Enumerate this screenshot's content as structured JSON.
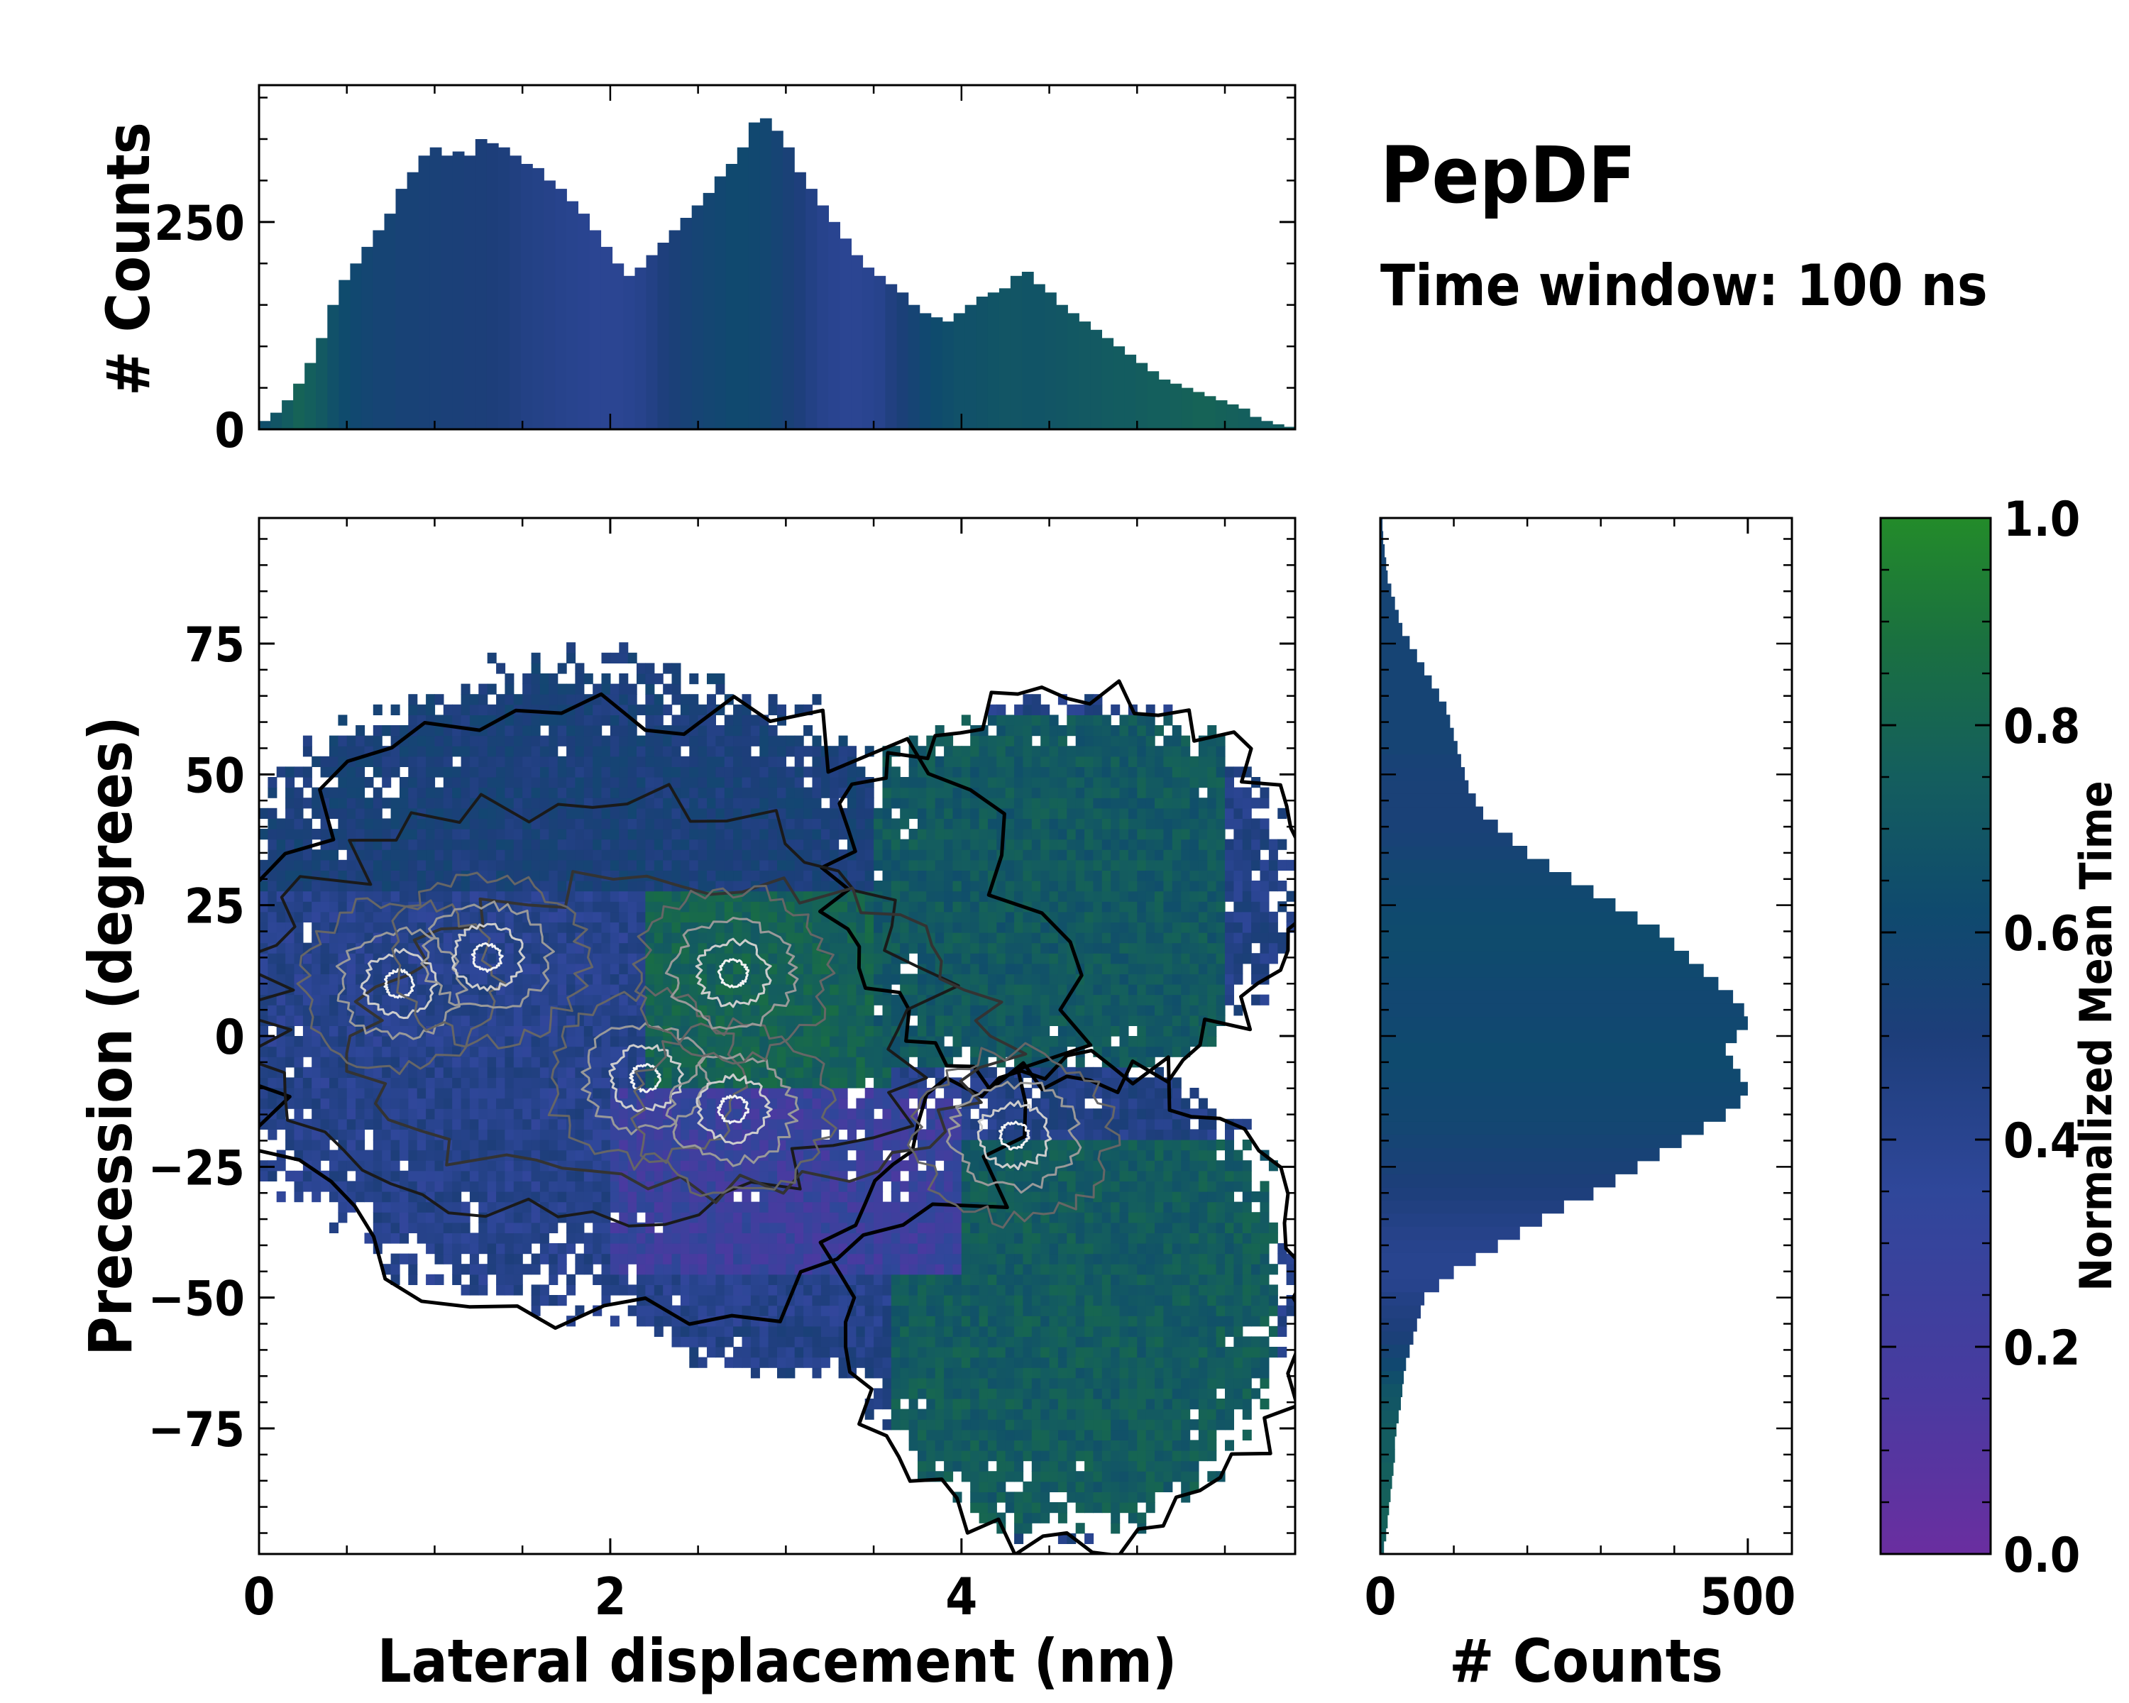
{
  "annotation": {
    "title": "PepDF",
    "subtitle": "Time window: 100 ns"
  },
  "chart_data": [
    {
      "type": "heatmap",
      "role": "main-2d-histogram",
      "xlabel": "Lateral displacement (nm)",
      "ylabel": "Precession (degrees)",
      "xlim": [
        0,
        5.9
      ],
      "ylim": [
        -99,
        99
      ],
      "xticks": [
        0,
        2,
        4
      ],
      "xtick_labels": [
        "0",
        "2",
        "4"
      ],
      "yticks": [
        -75,
        -50,
        -25,
        0,
        25,
        50,
        75
      ],
      "ytick_labels": [
        "−75",
        "−50",
        "−25",
        "0",
        "25",
        "50",
        "75"
      ],
      "description_regions": [
        {
          "x_range": [
            0,
            4.2
          ],
          "y_range": [
            -55,
            72
          ],
          "color_value": 0.35
        },
        {
          "x_range": [
            2.2,
            3.6
          ],
          "y_range": [
            -10,
            35
          ],
          "color_value": 0.75
        },
        {
          "x_range": [
            3.5,
            5.5
          ],
          "y_range": [
            -5,
            62
          ],
          "color_value": 0.68
        },
        {
          "x_range": [
            3.6,
            5.8
          ],
          "y_range": [
            -95,
            -20
          ],
          "color_value": 0.7
        }
      ],
      "density_peaks": [
        {
          "x": 0.8,
          "y": 10
        },
        {
          "x": 1.3,
          "y": 15
        },
        {
          "x": 2.2,
          "y": -8
        },
        {
          "x": 2.7,
          "y": -14
        },
        {
          "x": 2.7,
          "y": 12
        },
        {
          "x": 4.3,
          "y": -19
        }
      ]
    },
    {
      "type": "bar",
      "role": "top-marginal-histogram",
      "ylabel": "# Counts",
      "ylim": [
        0,
        415
      ],
      "yticks": [
        0,
        250
      ],
      "ytick_labels": [
        "0",
        "250"
      ],
      "x_range": [
        0,
        5.9
      ],
      "values": [
        10,
        20,
        35,
        55,
        80,
        110,
        150,
        180,
        200,
        220,
        240,
        260,
        290,
        310,
        330,
        340,
        330,
        335,
        330,
        350,
        345,
        340,
        330,
        320,
        315,
        300,
        290,
        275,
        260,
        240,
        220,
        200,
        185,
        195,
        210,
        225,
        240,
        255,
        270,
        285,
        305,
        320,
        340,
        370,
        375,
        360,
        340,
        310,
        290,
        270,
        250,
        230,
        210,
        195,
        185,
        175,
        165,
        150,
        140,
        135,
        130,
        140,
        150,
        160,
        165,
        170,
        185,
        190,
        175,
        165,
        150,
        140,
        130,
        120,
        110,
        100,
        90,
        80,
        70,
        60,
        55,
        50,
        45,
        40,
        35,
        30,
        25,
        15,
        10,
        6,
        3
      ],
      "time_values": [
        0.6,
        0.65,
        0.7,
        0.75,
        0.72,
        0.68,
        0.62,
        0.58,
        0.55,
        0.52,
        0.5,
        0.5,
        0.48,
        0.48,
        0.47,
        0.46,
        0.45,
        0.45,
        0.44,
        0.44,
        0.43,
        0.42,
        0.4,
        0.38,
        0.37,
        0.36,
        0.35,
        0.34,
        0.33,
        0.32,
        0.32,
        0.32,
        0.33,
        0.35,
        0.38,
        0.42,
        0.45,
        0.48,
        0.5,
        0.52,
        0.54,
        0.56,
        0.56,
        0.55,
        0.53,
        0.5,
        0.46,
        0.42,
        0.38,
        0.35,
        0.33,
        0.32,
        0.32,
        0.33,
        0.35,
        0.4,
        0.45,
        0.5,
        0.55,
        0.58,
        0.6,
        0.62,
        0.62,
        0.63,
        0.64,
        0.65,
        0.65,
        0.64,
        0.64,
        0.65,
        0.66,
        0.67,
        0.68,
        0.68,
        0.69,
        0.7,
        0.7,
        0.71,
        0.72,
        0.72,
        0.73,
        0.74,
        0.75,
        0.75,
        0.74,
        0.73,
        0.72,
        0.7,
        0.7,
        0.7,
        0.7
      ]
    },
    {
      "type": "bar",
      "role": "right-marginal-histogram",
      "orientation": "horizontal",
      "xlabel": "# Counts",
      "xlim": [
        0,
        560
      ],
      "xticks": [
        0,
        500
      ],
      "xtick_labels": [
        "0",
        "500"
      ],
      "y_range": [
        -99,
        99
      ],
      "values": [
        5,
        8,
        10,
        12,
        14,
        16,
        18,
        20,
        20,
        22,
        25,
        28,
        30,
        32,
        35,
        40,
        45,
        50,
        55,
        60,
        80,
        100,
        130,
        160,
        190,
        220,
        250,
        290,
        320,
        350,
        380,
        410,
        440,
        470,
        490,
        500,
        490,
        480,
        470,
        485,
        500,
        495,
        480,
        460,
        440,
        420,
        400,
        380,
        350,
        320,
        290,
        260,
        230,
        200,
        180,
        160,
        140,
        130,
        120,
        115,
        110,
        105,
        100,
        95,
        90,
        80,
        70,
        60,
        50,
        40,
        30,
        25,
        20,
        15,
        10,
        8,
        6,
        4,
        3
      ],
      "time_values": [
        0.7,
        0.72,
        0.74,
        0.74,
        0.73,
        0.72,
        0.72,
        0.7,
        0.7,
        0.7,
        0.68,
        0.66,
        0.64,
        0.6,
        0.55,
        0.5,
        0.45,
        0.42,
        0.4,
        0.38,
        0.35,
        0.34,
        0.34,
        0.35,
        0.36,
        0.38,
        0.4,
        0.42,
        0.44,
        0.46,
        0.48,
        0.5,
        0.52,
        0.53,
        0.54,
        0.55,
        0.56,
        0.57,
        0.57,
        0.56,
        0.55,
        0.54,
        0.54,
        0.55,
        0.56,
        0.57,
        0.58,
        0.58,
        0.57,
        0.56,
        0.55,
        0.53,
        0.52,
        0.5,
        0.48,
        0.47,
        0.46,
        0.46,
        0.46,
        0.47,
        0.48,
        0.5,
        0.5,
        0.5,
        0.5,
        0.5,
        0.5,
        0.5,
        0.5,
        0.5,
        0.5,
        0.5,
        0.5,
        0.5,
        0.5,
        0.5,
        0.5,
        0.5,
        0.5
      ]
    },
    {
      "type": "colorbar",
      "label": "Normalized Mean Time",
      "range": [
        0,
        1
      ],
      "ticks": [
        0.0,
        0.2,
        0.4,
        0.6,
        0.8,
        1.0
      ],
      "tick_labels": [
        "0.0",
        "0.2",
        "0.4",
        "0.6",
        "0.8",
        "1.0"
      ],
      "colors": [
        "#6a2ea0",
        "#4a3aa0",
        "#2f479a",
        "#1d3e7a",
        "#0f4a6e",
        "#145e5e",
        "#1a7040",
        "#238b2a"
      ]
    }
  ]
}
